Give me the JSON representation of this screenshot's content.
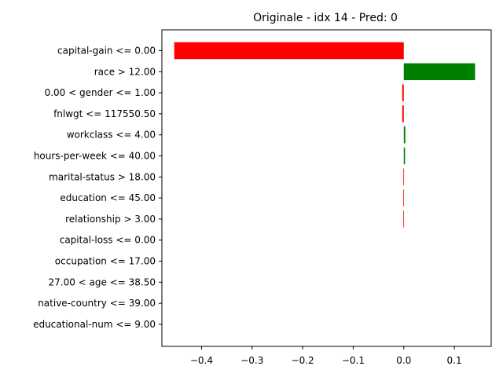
{
  "chart_data": {
    "type": "bar",
    "orientation": "horizontal",
    "title": "Originale - idx 14 - Pred: 0",
    "xlabel": "",
    "ylabel": "",
    "xlim": [
      -0.4784,
      0.1729
    ],
    "grid": false,
    "legend": "none",
    "categories": [
      "capital-gain <= 0.00",
      "race > 12.00",
      "0.00 < gender <= 1.00",
      "fnlwgt <= 117550.50",
      "workclass <= 4.00",
      "hours-per-week <= 40.00",
      "marital-status > 18.00",
      "education <= 45.00",
      "relationship > 3.00",
      "capital-loss <= 0.00",
      "occupation <= 17.00",
      "27.00 < age <= 38.50",
      "native-country <= 39.00",
      "educational-num <= 9.00"
    ],
    "values": [
      -0.454,
      0.141,
      -0.003,
      -0.003,
      0.003,
      0.0025,
      -0.0008,
      -0.0008,
      -0.0008,
      0,
      0,
      0,
      0,
      0
    ],
    "x_ticks": [
      -0.4,
      -0.3,
      -0.2,
      -0.1,
      0.0,
      0.1
    ],
    "x_tick_labels": [
      "−0.4",
      "−0.3",
      "−0.2",
      "−0.1",
      "0.0",
      "0.1"
    ],
    "colors": {
      "negative": "#ff0000",
      "positive": "#008000"
    }
  }
}
